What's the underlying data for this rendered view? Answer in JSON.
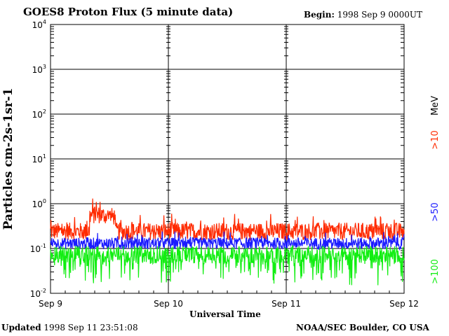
{
  "header": {
    "title": "GOES8 Proton Flux (5 minute data)",
    "begin_label": "Begin:",
    "begin_value": "1998 Sep 9 0000UT"
  },
  "footer": {
    "updated_label": "Updated",
    "updated_value": "1998 Sep 11 23:51:08",
    "credit": "NOAA/SEC Boulder, CO USA"
  },
  "chart_data": {
    "type": "line",
    "title": "GOES8 Proton Flux (5 minute data)",
    "xlabel": "Universal Time",
    "ylabel": "Particles cm-2s-1sr-1",
    "yscale": "log",
    "ylim": [
      0.01,
      10000
    ],
    "y_ticks": [
      {
        "base": "10",
        "exp": "-2",
        "value": 0.01
      },
      {
        "base": "10",
        "exp": "-1",
        "value": 0.1
      },
      {
        "base": "10",
        "exp": "0",
        "value": 1
      },
      {
        "base": "10",
        "exp": "1",
        "value": 10
      },
      {
        "base": "10",
        "exp": "2",
        "value": 100
      },
      {
        "base": "10",
        "exp": "3",
        "value": 1000
      },
      {
        "base": "10",
        "exp": "4",
        "value": 10000
      }
    ],
    "x_ticks": [
      "Sep 9",
      "Sep 10",
      "Sep 11",
      "Sep 12"
    ],
    "x_range_days": [
      0,
      3
    ],
    "grid": true,
    "legend_position": "right",
    "units_label": "MeV",
    "series": [
      {
        "name": ">10",
        "color": "#ff2a00",
        "approx_median": 0.22,
        "values_note": "noisy 5-minute flux"
      },
      {
        "name": ">50",
        "color": "#1a1aff",
        "approx_median": 0.13
      },
      {
        "name": ">100",
        "color": "#11ee11",
        "approx_median": 0.07
      }
    ]
  }
}
